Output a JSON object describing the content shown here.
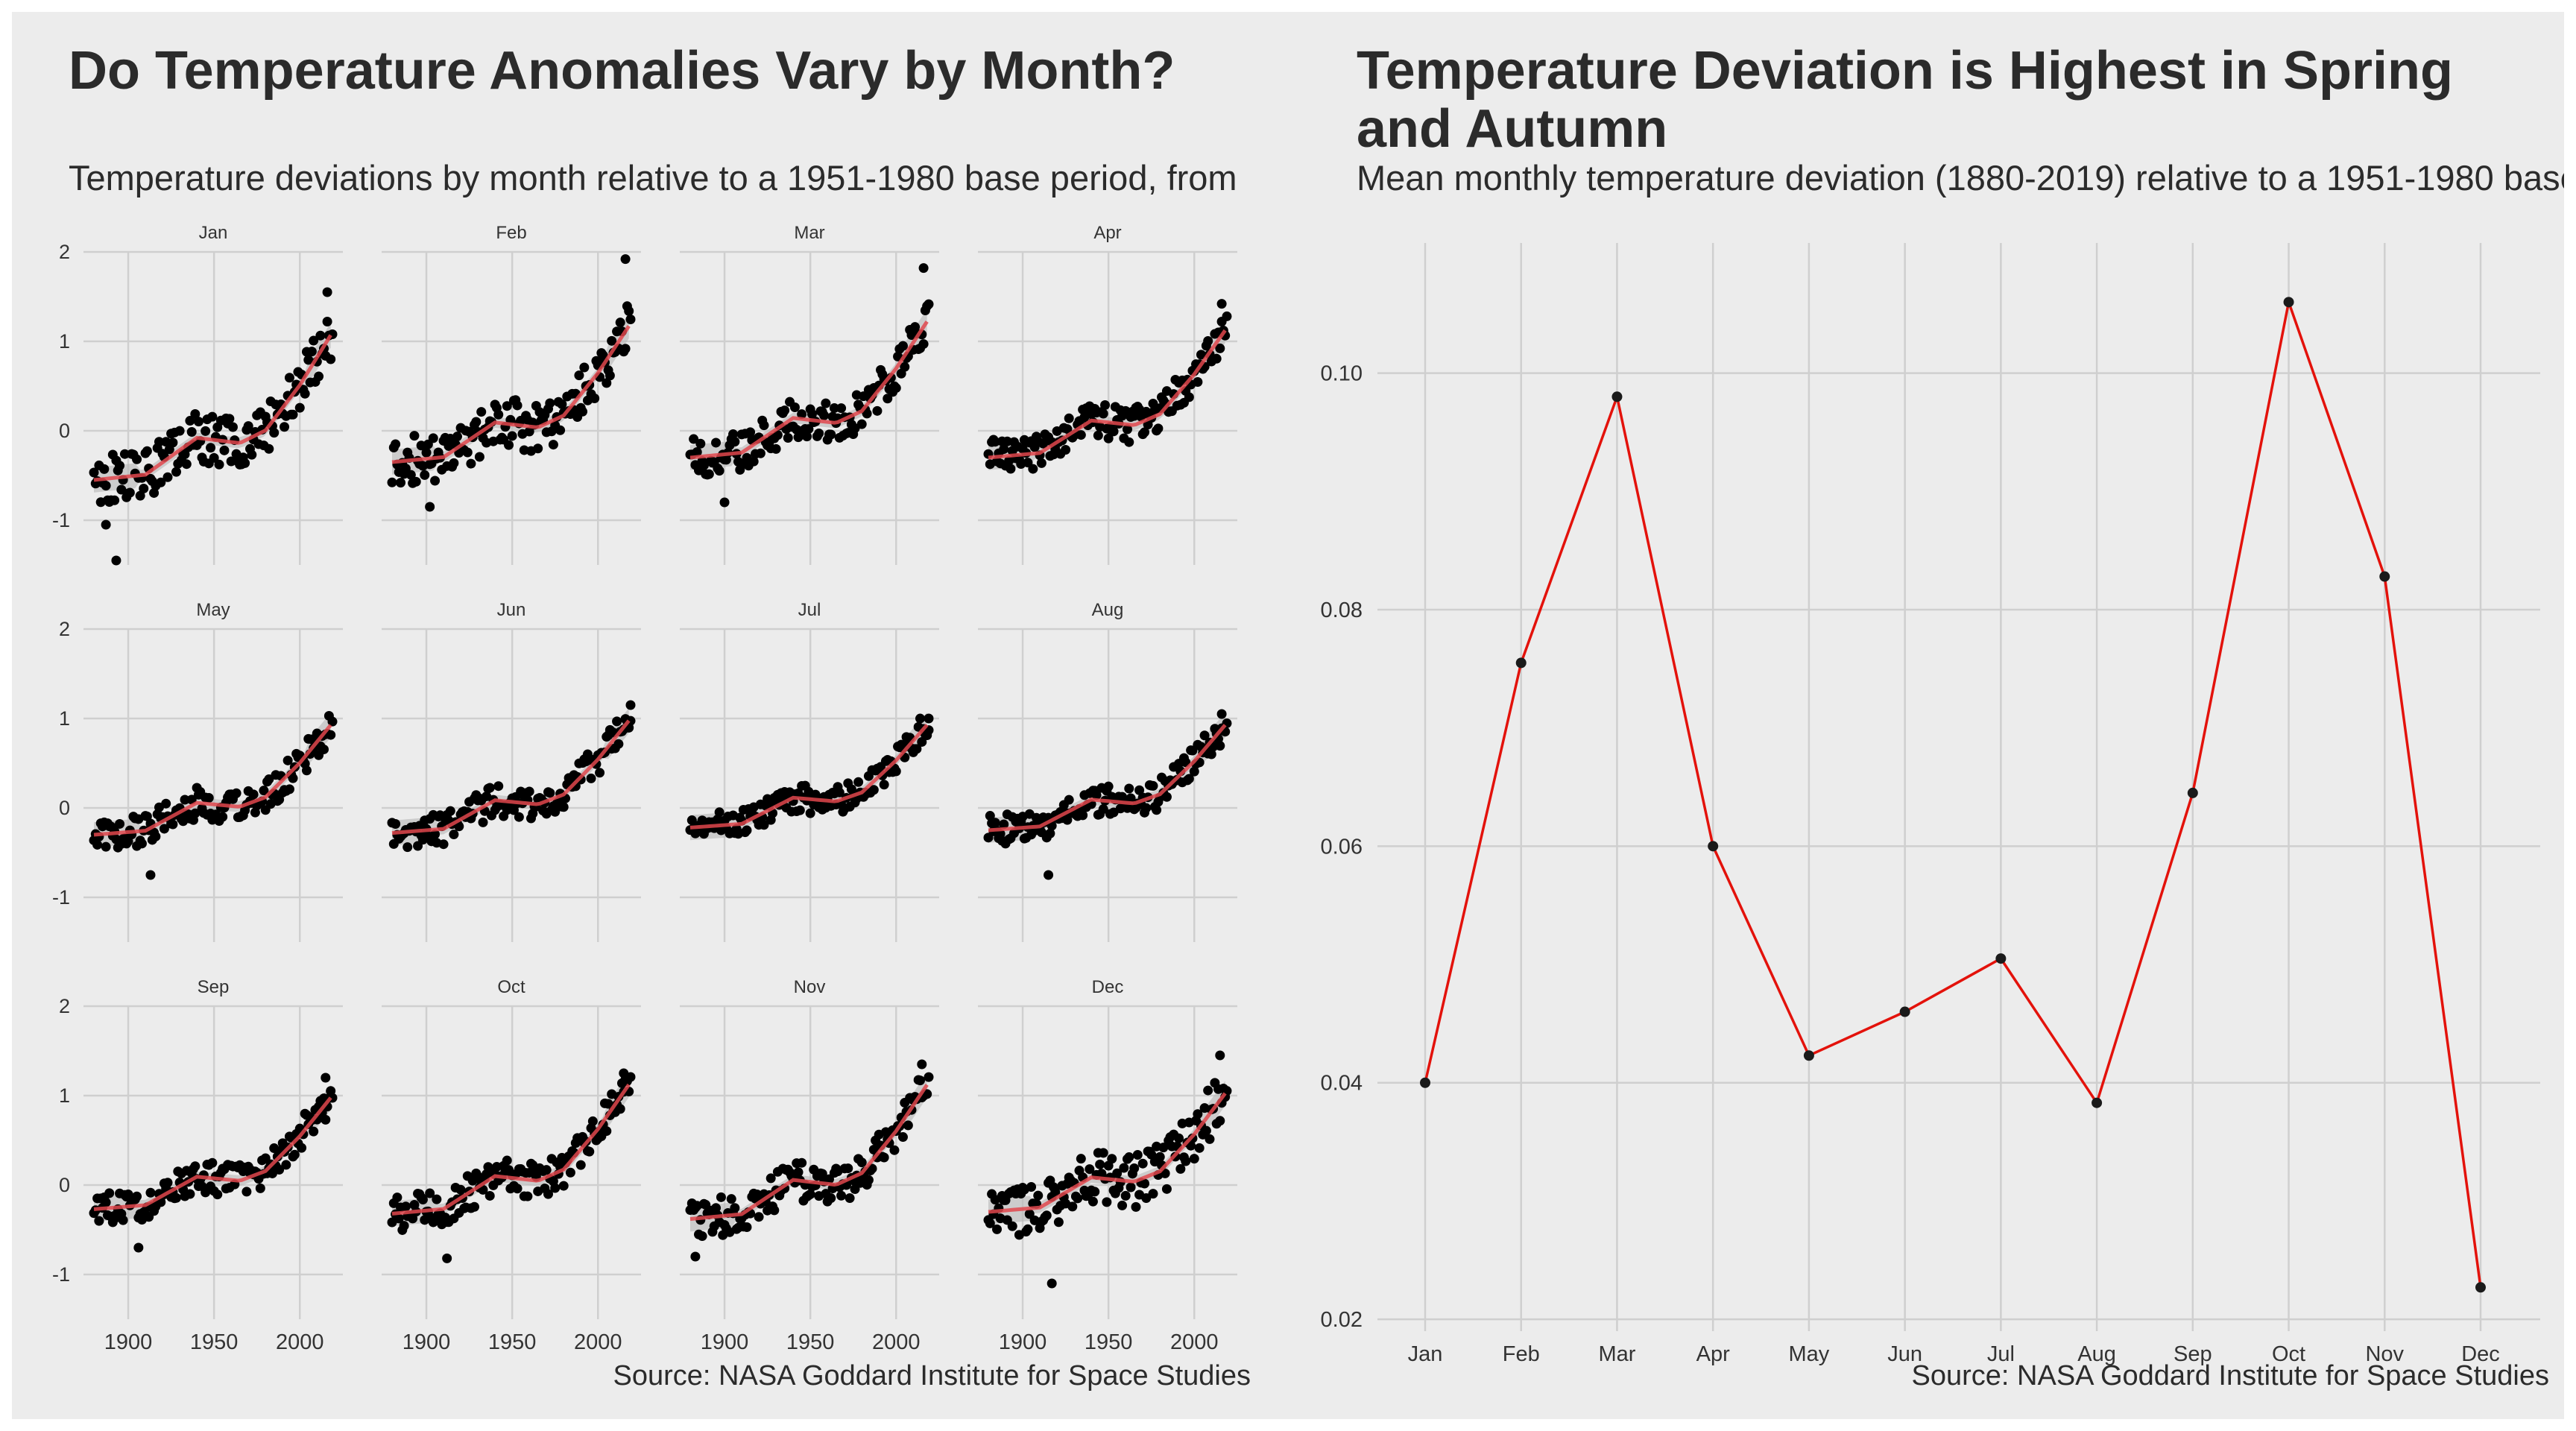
{
  "left_chart": {
    "title": "Do Temperature Anomalies Vary by Month?",
    "subtitle": "Temperature deviations by month relative to a 1951-1980 base period, from",
    "caption": "Source: NASA Goddard Institute for Space Studies"
  },
  "right_chart": {
    "title": "Temperature Deviation is Highest in Spring and Autumn",
    "subtitle": "Mean monthly temperature deviation (1880-2019) relative to a 1951-1980 base",
    "caption": "Source: NASA Goddard Institute for Space Studies"
  },
  "colors": {
    "panel_background": "#ececec",
    "gridline": "#cfcfcf",
    "points": "#000000",
    "smooth_line": "#e0474c",
    "confidence_band": "#b8b8b8",
    "line": "#e3120b",
    "text": "#2b2b2b"
  },
  "chart_data": [
    {
      "type": "scatter",
      "facets": [
        "Jan",
        "Feb",
        "Mar",
        "Apr",
        "May",
        "Jun",
        "Jul",
        "Aug",
        "Sep",
        "Oct",
        "Nov",
        "Dec"
      ],
      "facet_layout": "3 rows x 4 columns",
      "x_range": [
        1880,
        2019
      ],
      "x_ticks": [
        "1900",
        "1950",
        "2000"
      ],
      "ylim": [
        -1.5,
        2
      ],
      "y_ticks": [
        "-1",
        "0",
        "1",
        "2"
      ],
      "grid": true,
      "overlay": "loess smooth with confidence band",
      "approx_trend": {
        "x": [
          1880,
          1910,
          1940,
          1965,
          1980,
          2000,
          2019
        ],
        "y": [
          -0.35,
          -0.3,
          0.05,
          0.0,
          0.12,
          0.55,
          1.05
        ]
      },
      "series": [
        {
          "name": "Jan",
          "trend_start": -0.55,
          "trend_end": 1.1,
          "spread": 0.28,
          "extremes": [
            [
              1893,
              -1.45
            ],
            [
              1887,
              -1.05
            ],
            [
              2016,
              1.55
            ]
          ]
        },
        {
          "name": "Feb",
          "trend_start": -0.35,
          "trend_end": 1.2,
          "spread": 0.28,
          "extremes": [
            [
              2016,
              1.92
            ],
            [
              1902,
              -0.85
            ]
          ]
        },
        {
          "name": "Mar",
          "trend_start": -0.3,
          "trend_end": 1.25,
          "spread": 0.22,
          "extremes": [
            [
              2016,
              1.82
            ],
            [
              1900,
              -0.8
            ]
          ]
        },
        {
          "name": "Apr",
          "trend_start": -0.3,
          "trend_end": 1.15,
          "spread": 0.2,
          "extremes": [
            [
              2016,
              1.42
            ]
          ]
        },
        {
          "name": "May",
          "trend_start": -0.3,
          "trend_end": 0.95,
          "spread": 0.18,
          "extremes": [
            [
              1913,
              -0.75
            ]
          ]
        },
        {
          "name": "Jun",
          "trend_start": -0.28,
          "trend_end": 1.0,
          "spread": 0.18,
          "extremes": [
            [
              2019,
              1.15
            ]
          ]
        },
        {
          "name": "Jul",
          "trend_start": -0.22,
          "trend_end": 0.95,
          "spread": 0.16,
          "extremes": [
            [
              2019,
              1.0
            ]
          ]
        },
        {
          "name": "Aug",
          "trend_start": -0.25,
          "trend_end": 0.95,
          "spread": 0.17,
          "extremes": [
            [
              1915,
              -0.75
            ],
            [
              2016,
              1.05
            ]
          ]
        },
        {
          "name": "Sep",
          "trend_start": -0.27,
          "trend_end": 1.0,
          "spread": 0.18,
          "extremes": [
            [
              1906,
              -0.7
            ],
            [
              2015,
              1.2
            ]
          ]
        },
        {
          "name": "Oct",
          "trend_start": -0.32,
          "trend_end": 1.15,
          "spread": 0.2,
          "extremes": [
            [
              1912,
              -0.82
            ],
            [
              2015,
              1.25
            ]
          ]
        },
        {
          "name": "Nov",
          "trend_start": -0.38,
          "trend_end": 1.15,
          "spread": 0.22,
          "extremes": [
            [
              1883,
              -0.8
            ],
            [
              2015,
              1.35
            ]
          ]
        },
        {
          "name": "Dec",
          "trend_start": -0.3,
          "trend_end": 1.05,
          "spread": 0.3,
          "extremes": [
            [
              1917,
              -1.1
            ],
            [
              2015,
              1.45
            ]
          ]
        }
      ]
    },
    {
      "type": "line",
      "categories": [
        "Jan",
        "Feb",
        "Mar",
        "Apr",
        "May",
        "Jun",
        "Jul",
        "Aug",
        "Sep",
        "Oct",
        "Nov",
        "Dec"
      ],
      "values": [
        0.04,
        0.0755,
        0.098,
        0.06,
        0.0423,
        0.046,
        0.0505,
        0.0383,
        0.0645,
        0.106,
        0.0828,
        0.0227
      ],
      "ylim": [
        0.019,
        0.111
      ],
      "y_ticks": [
        "0.02",
        "0.04",
        "0.06",
        "0.08",
        "0.10"
      ],
      "grid": true,
      "line_color": "#e3120b",
      "markers": true
    }
  ]
}
